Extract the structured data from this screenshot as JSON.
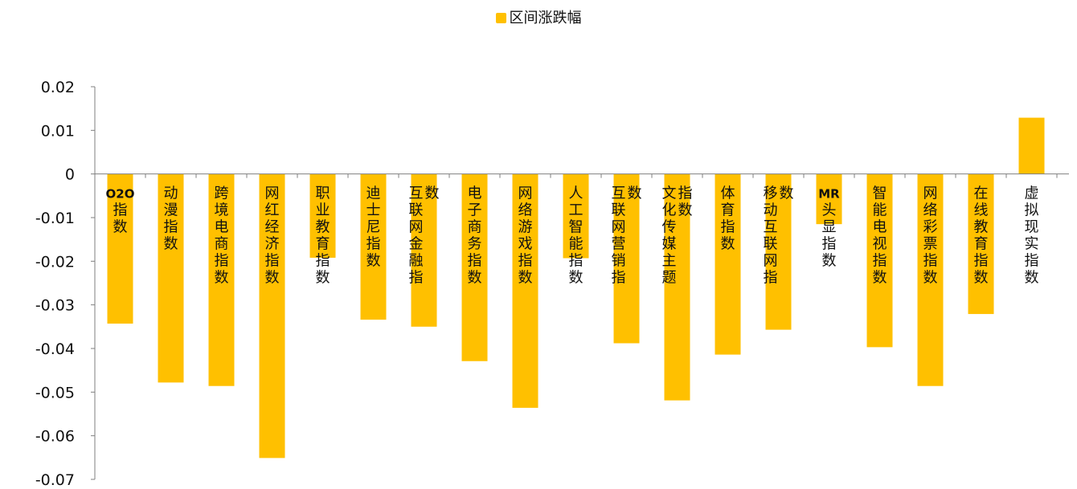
{
  "chart_data": {
    "type": "bar",
    "legend": {
      "position": "top-center"
    },
    "series": [
      {
        "name": "区间涨跌幅",
        "color": "#FFC000",
        "values": [
          -0.0343,
          -0.0478,
          -0.0486,
          -0.0651,
          -0.0192,
          -0.0334,
          -0.035,
          -0.0429,
          -0.0536,
          -0.0193,
          -0.0388,
          -0.0519,
          -0.0414,
          -0.0357,
          -0.0115,
          -0.0397,
          -0.0486,
          -0.0321,
          0.0129
        ]
      }
    ],
    "categories": [
      "O2O指数",
      "动漫指数",
      "跨境电商指数",
      "网红经济指数",
      "职业教育指数",
      "迪士尼指数",
      "互联网金融指数",
      "电子商务指数",
      "网络游戏指数",
      "人工智能指数",
      "互联网营销指数",
      "文化传媒主题指数",
      "体育指数",
      "移动互联网指数",
      "MR头显指数",
      "智能电视指数",
      "网络彩票指数",
      "在线教育指数",
      "虚拟现实指数"
    ],
    "ylim": [
      -0.07,
      0.02
    ],
    "yticks": [
      "0.02",
      "0.01",
      "0",
      "-0.01",
      "-0.02",
      "-0.03",
      "-0.04",
      "-0.05",
      "-0.06",
      "-0.07"
    ],
    "grid": false,
    "xlabel": "",
    "ylabel": "",
    "title": ""
  }
}
